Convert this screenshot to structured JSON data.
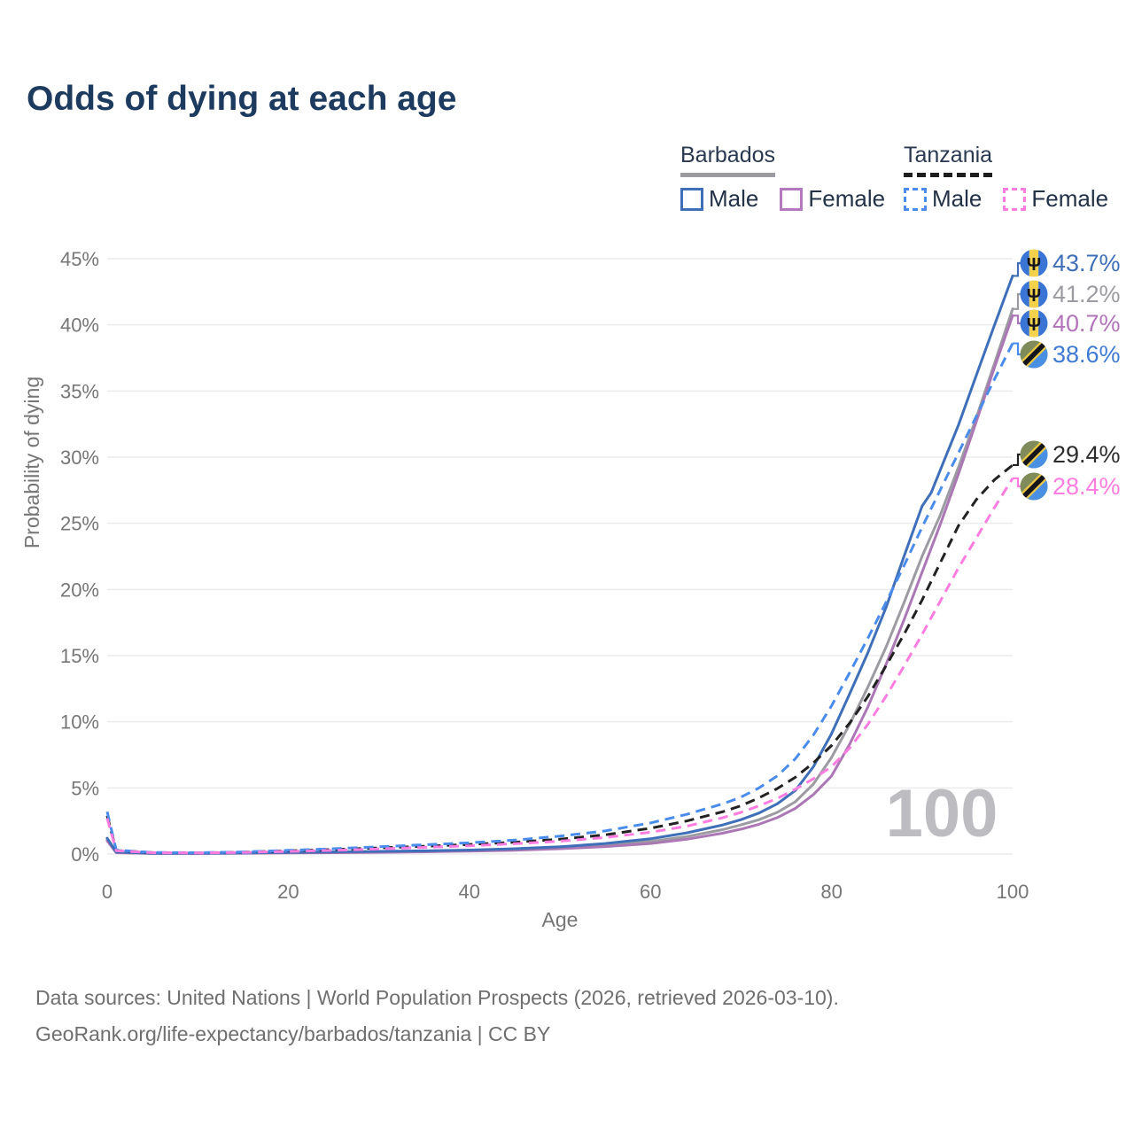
{
  "title": "Odds of dying at each age",
  "legend": {
    "groups": [
      {
        "id": "barbados",
        "title": "Barbados",
        "line_style": "solid",
        "underline_color": "#9b9ba1",
        "items": [
          {
            "id": "barbados-male",
            "label": "Male",
            "color": "#3e6fb8",
            "dashed": false
          },
          {
            "id": "barbados-female",
            "label": "Female",
            "color": "#b279be",
            "dashed": false
          }
        ]
      },
      {
        "id": "tanzania",
        "title": "Tanzania",
        "line_style": "dashed",
        "underline_color": "#1d1d1d",
        "items": [
          {
            "id": "tanzania-male",
            "label": "Male",
            "color": "#4a8cec",
            "dashed": true
          },
          {
            "id": "tanzania-female",
            "label": "Female",
            "color": "#ff7de0",
            "dashed": true
          }
        ]
      }
    ]
  },
  "chart_data": {
    "type": "line",
    "title": "Odds of dying at each age",
    "xlabel": "Age",
    "ylabel": "Probability of dying",
    "xlim": [
      0,
      100
    ],
    "ylim": [
      0,
      45
    ],
    "grid": true,
    "watermark": "100",
    "xticks": [
      {
        "value": 0,
        "label": "0"
      },
      {
        "value": 20,
        "label": "20"
      },
      {
        "value": 40,
        "label": "40"
      },
      {
        "value": 60,
        "label": "60"
      },
      {
        "value": 80,
        "label": "80"
      },
      {
        "value": 100,
        "label": "100"
      }
    ],
    "yticks": [
      {
        "value": 0,
        "label": "0%"
      },
      {
        "value": 5,
        "label": "5%"
      },
      {
        "value": 10,
        "label": "10%"
      },
      {
        "value": 15,
        "label": "15%"
      },
      {
        "value": 20,
        "label": "20%"
      },
      {
        "value": 25,
        "label": "25%"
      },
      {
        "value": 30,
        "label": "30%"
      },
      {
        "value": 35,
        "label": "35%"
      },
      {
        "value": 40,
        "label": "40%"
      },
      {
        "value": 45,
        "label": "45%"
      }
    ],
    "series": [
      {
        "id": "barbados-total",
        "name": "Barbados (both sexes)",
        "country": "barbados",
        "style": "solid",
        "color": "#9b9ba1",
        "end_label": "41.2%",
        "label_color": "#9b9ba1",
        "points": [
          [
            0,
            1.1
          ],
          [
            1,
            0.12
          ],
          [
            5,
            0.05
          ],
          [
            10,
            0.05
          ],
          [
            15,
            0.08
          ],
          [
            20,
            0.11
          ],
          [
            25,
            0.13
          ],
          [
            30,
            0.16
          ],
          [
            35,
            0.2
          ],
          [
            40,
            0.26
          ],
          [
            45,
            0.34
          ],
          [
            50,
            0.47
          ],
          [
            55,
            0.66
          ],
          [
            60,
            0.95
          ],
          [
            64,
            1.32
          ],
          [
            68,
            1.85
          ],
          [
            70,
            2.2
          ],
          [
            72,
            2.6
          ],
          [
            74,
            3.15
          ],
          [
            76,
            3.95
          ],
          [
            78,
            5.3
          ],
          [
            80,
            7.3
          ],
          [
            82,
            9.8
          ],
          [
            84,
            12.6
          ],
          [
            86,
            15.6
          ],
          [
            88,
            19.0
          ],
          [
            90,
            22.5
          ],
          [
            92,
            25.6
          ],
          [
            94,
            29.2
          ],
          [
            96,
            33.0
          ],
          [
            98,
            37.1
          ],
          [
            100,
            41.2
          ]
        ]
      },
      {
        "id": "barbados-female",
        "name": "Barbados Female",
        "country": "barbados",
        "style": "solid",
        "color": "#ab77b5",
        "end_label": "40.7%",
        "label_color": "#b273ba",
        "points": [
          [
            0,
            1.0
          ],
          [
            1,
            0.1
          ],
          [
            5,
            0.04
          ],
          [
            10,
            0.04
          ],
          [
            15,
            0.06
          ],
          [
            20,
            0.08
          ],
          [
            25,
            0.1
          ],
          [
            30,
            0.13
          ],
          [
            35,
            0.17
          ],
          [
            40,
            0.22
          ],
          [
            45,
            0.29
          ],
          [
            50,
            0.4
          ],
          [
            55,
            0.56
          ],
          [
            60,
            0.8
          ],
          [
            64,
            1.12
          ],
          [
            68,
            1.58
          ],
          [
            70,
            1.88
          ],
          [
            72,
            2.25
          ],
          [
            74,
            2.75
          ],
          [
            76,
            3.45
          ],
          [
            78,
            4.5
          ],
          [
            80,
            5.9
          ],
          [
            82,
            8.3
          ],
          [
            84,
            11.1
          ],
          [
            86,
            14.3
          ],
          [
            88,
            17.7
          ],
          [
            90,
            21.3
          ],
          [
            92,
            24.9
          ],
          [
            94,
            28.7
          ],
          [
            96,
            32.7
          ],
          [
            98,
            36.8
          ],
          [
            100,
            40.7
          ]
        ]
      },
      {
        "id": "barbados-male",
        "name": "Barbados Male",
        "country": "barbados",
        "style": "solid",
        "color": "#3e6fb8",
        "end_label": "43.7%",
        "label_color": "#3e6fb8",
        "points": [
          [
            0,
            1.2
          ],
          [
            1,
            0.15
          ],
          [
            5,
            0.06
          ],
          [
            10,
            0.06
          ],
          [
            15,
            0.09
          ],
          [
            20,
            0.13
          ],
          [
            25,
            0.16
          ],
          [
            30,
            0.2
          ],
          [
            35,
            0.24
          ],
          [
            40,
            0.3
          ],
          [
            45,
            0.4
          ],
          [
            50,
            0.55
          ],
          [
            55,
            0.8
          ],
          [
            60,
            1.15
          ],
          [
            64,
            1.6
          ],
          [
            68,
            2.2
          ],
          [
            70,
            2.6
          ],
          [
            72,
            3.1
          ],
          [
            74,
            3.8
          ],
          [
            76,
            4.8
          ],
          [
            78,
            6.6
          ],
          [
            80,
            9.1
          ],
          [
            82,
            12.1
          ],
          [
            84,
            15.2
          ],
          [
            86,
            18.6
          ],
          [
            88,
            22.5
          ],
          [
            90,
            26.3
          ],
          [
            91,
            27.3
          ],
          [
            92,
            29.0
          ],
          [
            94,
            32.4
          ],
          [
            96,
            36.2
          ],
          [
            98,
            40.0
          ],
          [
            100,
            43.7
          ]
        ]
      },
      {
        "id": "tanzania-total",
        "name": "Tanzania (both sexes)",
        "country": "tanzania",
        "style": "dashed",
        "color": "#222222",
        "end_label": "29.4%",
        "label_color": "#2d2d2d",
        "points": [
          [
            0,
            2.9
          ],
          [
            1,
            0.27
          ],
          [
            5,
            0.11
          ],
          [
            10,
            0.09
          ],
          [
            15,
            0.14
          ],
          [
            20,
            0.24
          ],
          [
            25,
            0.34
          ],
          [
            30,
            0.46
          ],
          [
            35,
            0.58
          ],
          [
            40,
            0.72
          ],
          [
            45,
            0.9
          ],
          [
            50,
            1.12
          ],
          [
            55,
            1.45
          ],
          [
            60,
            1.95
          ],
          [
            64,
            2.5
          ],
          [
            68,
            3.2
          ],
          [
            70,
            3.65
          ],
          [
            72,
            4.25
          ],
          [
            74,
            4.95
          ],
          [
            76,
            5.8
          ],
          [
            78,
            6.9
          ],
          [
            80,
            8.2
          ],
          [
            82,
            9.9
          ],
          [
            84,
            11.9
          ],
          [
            86,
            14.2
          ],
          [
            88,
            16.6
          ],
          [
            90,
            19.2
          ],
          [
            92,
            22.0
          ],
          [
            94,
            24.8
          ],
          [
            96,
            26.8
          ],
          [
            98,
            28.3
          ],
          [
            100,
            29.4
          ]
        ]
      },
      {
        "id": "tanzania-male",
        "name": "Tanzania Male",
        "country": "tanzania",
        "style": "dashed",
        "color": "#4a8cec",
        "end_label": "38.6%",
        "label_color": "#3f7ad2",
        "points": [
          [
            0,
            3.2
          ],
          [
            1,
            0.3
          ],
          [
            5,
            0.12
          ],
          [
            10,
            0.1
          ],
          [
            15,
            0.16
          ],
          [
            20,
            0.28
          ],
          [
            25,
            0.4
          ],
          [
            30,
            0.55
          ],
          [
            35,
            0.7
          ],
          [
            40,
            0.85
          ],
          [
            45,
            1.05
          ],
          [
            50,
            1.35
          ],
          [
            55,
            1.75
          ],
          [
            60,
            2.35
          ],
          [
            64,
            3.0
          ],
          [
            68,
            3.8
          ],
          [
            70,
            4.3
          ],
          [
            72,
            5.0
          ],
          [
            74,
            5.9
          ],
          [
            76,
            7.2
          ],
          [
            78,
            9.0
          ],
          [
            80,
            11.2
          ],
          [
            82,
            13.7
          ],
          [
            84,
            16.3
          ],
          [
            86,
            19.0
          ],
          [
            88,
            21.8
          ],
          [
            90,
            24.7
          ],
          [
            92,
            27.5
          ],
          [
            94,
            30.3
          ],
          [
            96,
            33.1
          ],
          [
            98,
            35.9
          ],
          [
            100,
            38.6
          ]
        ]
      },
      {
        "id": "tanzania-female",
        "name": "Tanzania Female",
        "country": "tanzania",
        "style": "dashed",
        "color": "#ff7de0",
        "end_label": "28.4%",
        "label_color": "#ff7de0",
        "points": [
          [
            0,
            2.7
          ],
          [
            1,
            0.25
          ],
          [
            5,
            0.1
          ],
          [
            10,
            0.08
          ],
          [
            15,
            0.12
          ],
          [
            20,
            0.2
          ],
          [
            25,
            0.28
          ],
          [
            30,
            0.38
          ],
          [
            35,
            0.5
          ],
          [
            40,
            0.62
          ],
          [
            45,
            0.78
          ],
          [
            50,
            0.97
          ],
          [
            55,
            1.25
          ],
          [
            60,
            1.65
          ],
          [
            64,
            2.1
          ],
          [
            68,
            2.75
          ],
          [
            70,
            3.15
          ],
          [
            72,
            3.65
          ],
          [
            74,
            4.2
          ],
          [
            76,
            4.9
          ],
          [
            78,
            5.7
          ],
          [
            80,
            6.6
          ],
          [
            82,
            8.0
          ],
          [
            84,
            9.8
          ],
          [
            86,
            11.9
          ],
          [
            88,
            14.2
          ],
          [
            90,
            16.6
          ],
          [
            92,
            19.1
          ],
          [
            94,
            21.6
          ],
          [
            96,
            23.9
          ],
          [
            98,
            26.2
          ],
          [
            100,
            28.4
          ]
        ]
      }
    ]
  },
  "flags": {
    "barbados": {
      "blue": "#3a74d4",
      "yellow": "#f3d14b",
      "trident": "#15151d",
      "trident_glyph": "Ψ"
    },
    "tanzania": {
      "green": "#7f8c5a",
      "blue": "#4a90e2",
      "yellow": "#ecc843",
      "black": "#15151d"
    }
  },
  "footer": {
    "line1": "Data sources: United Nations | World Population Prospects (2026, retrieved 2026-03-10).",
    "line2": "GeoRank.org/life-expectancy/barbados/tanzania | CC BY"
  },
  "colors": {
    "title_text": "#1d3a5f",
    "axis_text": "#767676",
    "gridline": "#ececef",
    "legend_text": "#233247",
    "footer_text": "#6f6f6f",
    "watermark": "#bdbdc1",
    "background": "#ffffff"
  }
}
